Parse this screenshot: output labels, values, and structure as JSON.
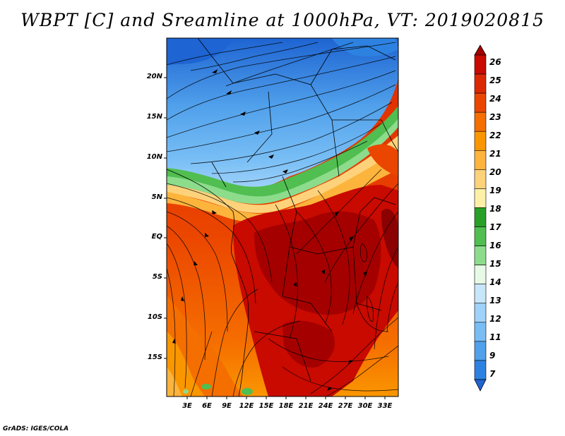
{
  "title": "WBPT [C] and Sreamline at 1000hPa, VT: 2019020815",
  "credit": "GrADS: IGES/COLA",
  "lat_labels": [
    "20N",
    "15N",
    "10N",
    "5N",
    "EQ",
    "5S",
    "10S",
    "15S"
  ],
  "lon_labels": [
    "3E",
    "6E",
    "9E",
    "12E",
    "15E",
    "18E",
    "21E",
    "24E",
    "27E",
    "30E",
    "33E"
  ],
  "colorbar": {
    "labels": [
      "26",
      "25",
      "24",
      "23",
      "22",
      "21",
      "20",
      "19",
      "18",
      "17",
      "16",
      "15",
      "14",
      "13",
      "12",
      "11",
      "9",
      "7"
    ],
    "colors": [
      "#a50000",
      "#c80a00",
      "#dc2800",
      "#eb4600",
      "#f56e00",
      "#fa9600",
      "#fcb43c",
      "#fdd27a",
      "#fff0a8",
      "#28a028",
      "#50be50",
      "#8cdc8c",
      "#e6fae6",
      "#c8e6fa",
      "#a0d2fa",
      "#78bef5",
      "#50a0eb",
      "#2d82e1",
      "#1e64d2"
    ]
  },
  "field_colors": {
    "cold_deep": "#1e64d2",
    "cold": "#50a0eb",
    "cool": "#a0d2fa",
    "green": "#50be50",
    "yellow": "#fdd27a",
    "orange": "#f56e00",
    "red": "#dc2800",
    "dark_red": "#a50000"
  }
}
